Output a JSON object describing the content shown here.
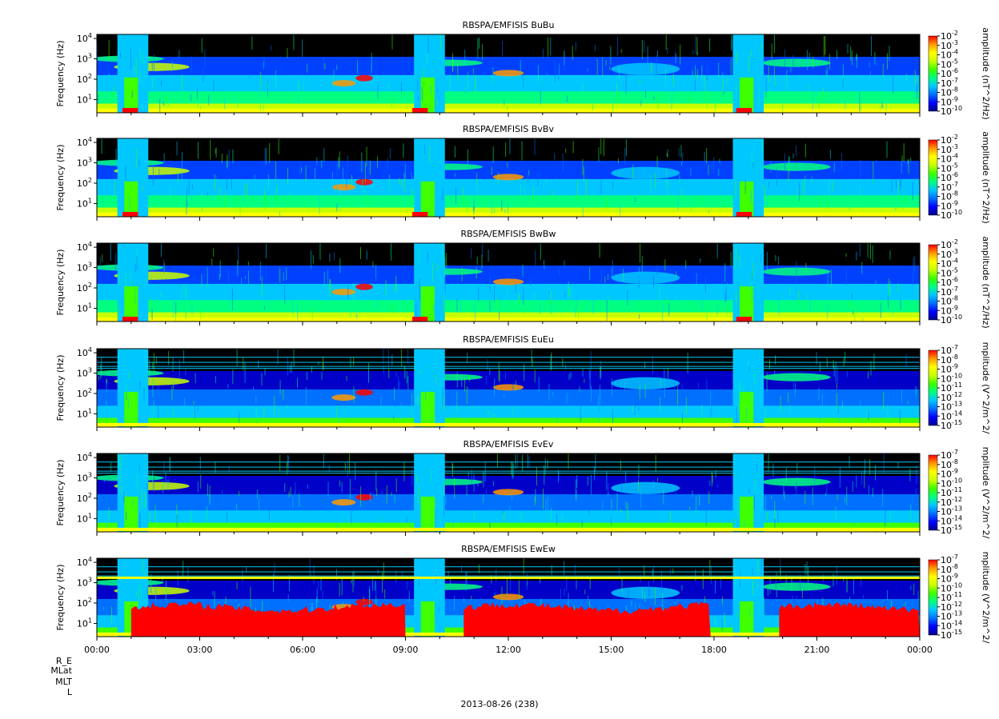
{
  "chart_data": [
    {
      "type": "heatmap",
      "title": "RBSPA/EMFISIS  BuBu",
      "ylabel": "Frequency (Hz)",
      "yscale": "log",
      "yticks": [
        "10^1",
        "10^2",
        "10^3",
        "10^4"
      ],
      "colorbar": {
        "label": "amplitude (nT^2/Hz)",
        "ticks": [
          "10^-2",
          "10^-3",
          "10^-4",
          "10^-5",
          "10^-6",
          "10^-7",
          "10^-8",
          "10^-9",
          "10^-10"
        ]
      }
    },
    {
      "type": "heatmap",
      "title": "RBSPA/EMFISIS  BvBv",
      "ylabel": "Frequency (Hz)",
      "yscale": "log",
      "yticks": [
        "10^1",
        "10^2",
        "10^3",
        "10^4"
      ],
      "colorbar": {
        "label": "amplitude (nT^2/Hz)",
        "ticks": [
          "10^-2",
          "10^-3",
          "10^-4",
          "10^-5",
          "10^-6",
          "10^-7",
          "10^-8",
          "10^-9",
          "10^-10"
        ]
      }
    },
    {
      "type": "heatmap",
      "title": "RBSPA/EMFISIS  BwBw",
      "ylabel": "Frequency (Hz)",
      "yscale": "log",
      "yticks": [
        "10^1",
        "10^2",
        "10^3",
        "10^4"
      ],
      "colorbar": {
        "label": "amplitude (nT^2/Hz)",
        "ticks": [
          "10^-2",
          "10^-3",
          "10^-4",
          "10^-5",
          "10^-6",
          "10^-7",
          "10^-8",
          "10^-9",
          "10^-10"
        ]
      }
    },
    {
      "type": "heatmap",
      "title": "RBSPA/EMFISIS  EuEu",
      "ylabel": "Frequency (Hz)",
      "yscale": "log",
      "yticks": [
        "10^1",
        "10^2",
        "10^3",
        "10^4"
      ],
      "colorbar": {
        "label": "mplitude (V^2/m^2/",
        "ticks": [
          "10^-7",
          "10^-8",
          "10^-9",
          "10^-10",
          "10^-11",
          "10^-12",
          "10^-13",
          "10^-14",
          "10^-15"
        ]
      }
    },
    {
      "type": "heatmap",
      "title": "RBSPA/EMFISIS  EvEv",
      "ylabel": "Frequency (Hz)",
      "yscale": "log",
      "yticks": [
        "10^1",
        "10^2",
        "10^3",
        "10^4"
      ],
      "colorbar": {
        "label": "mplitude (V^2/m^2/",
        "ticks": [
          "10^-7",
          "10^-8",
          "10^-9",
          "10^-10",
          "10^-11",
          "10^-12",
          "10^-13",
          "10^-14",
          "10^-15"
        ]
      }
    },
    {
      "type": "heatmap",
      "title": "RBSPA/EMFISIS  EwEw",
      "ylabel": "Frequency (Hz)",
      "yscale": "log",
      "yticks": [
        "10^1",
        "10^2",
        "10^3",
        "10^4"
      ],
      "colorbar": {
        "label": "mplitude (V^2/m^2/",
        "ticks": [
          "10^-7",
          "10^-8",
          "10^-9",
          "10^-10",
          "10^-11",
          "10^-12",
          "10^-13",
          "10^-14",
          "10^-15"
        ]
      }
    }
  ],
  "x_ticks": [
    "00:00",
    "03:00",
    "06:00",
    "09:00",
    "12:00",
    "15:00",
    "18:00",
    "21:00",
    "00:00"
  ],
  "x_hours": [
    0,
    3,
    6,
    9,
    12,
    15,
    18,
    21,
    24
  ],
  "footer_labels": [
    "R_E",
    "MLat",
    "MLT",
    "L"
  ],
  "date_label": "2013-08-26 (238)",
  "colors": {
    "bg": "#ffffff",
    "empty": "#000000",
    "scale": [
      "#00008b",
      "#0000ff",
      "#0070ff",
      "#00c8ff",
      "#00ff80",
      "#40ff00",
      "#c8ff00",
      "#ffff00",
      "#ff9900",
      "#ff0000"
    ]
  }
}
